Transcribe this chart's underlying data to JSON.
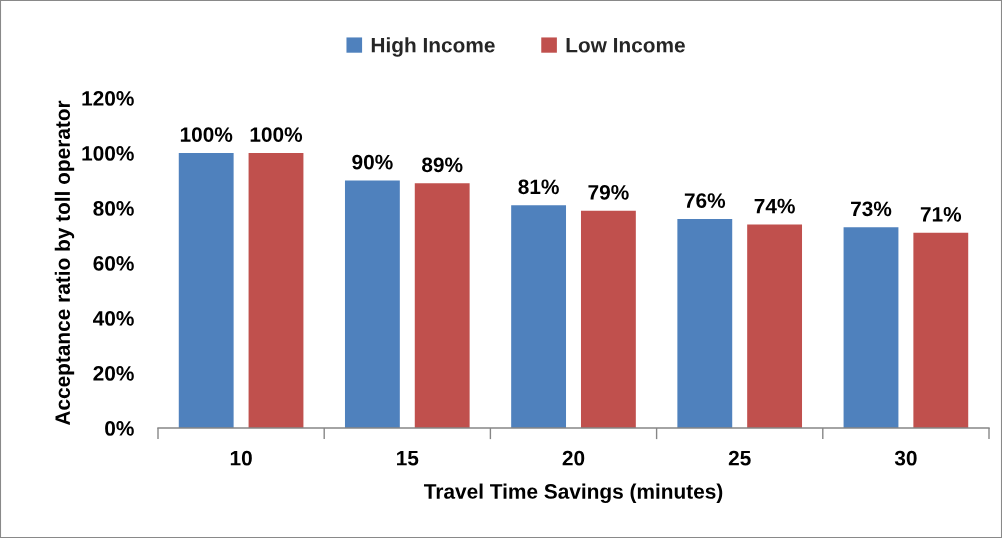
{
  "chart_data": {
    "type": "bar",
    "xlabel": "Travel Time Savings (minutes)",
    "ylabel": "Acceptance ratio by toll operator",
    "categories": [
      "10",
      "15",
      "20",
      "25",
      "30"
    ],
    "series": [
      {
        "name": "High Income",
        "color": "#4f81bd",
        "values": [
          100,
          90,
          81,
          76,
          73
        ],
        "value_labels": [
          "100%",
          "90%",
          "81%",
          "76%",
          "73%"
        ]
      },
      {
        "name": "Low Income",
        "color": "#c0504d",
        "values": [
          100,
          89,
          79,
          74,
          71
        ],
        "value_labels": [
          "100%",
          "89%",
          "79%",
          "74%",
          "71%"
        ]
      }
    ],
    "ylim": [
      0,
      120
    ],
    "yticks": [
      {
        "value": 0,
        "label": "0%"
      },
      {
        "value": 20,
        "label": "20%"
      },
      {
        "value": 40,
        "label": "40%"
      },
      {
        "value": 60,
        "label": "60%"
      },
      {
        "value": 80,
        "label": "80%"
      },
      {
        "value": 100,
        "label": "100%"
      },
      {
        "value": 120,
        "label": "120%"
      }
    ],
    "legend": "top"
  }
}
